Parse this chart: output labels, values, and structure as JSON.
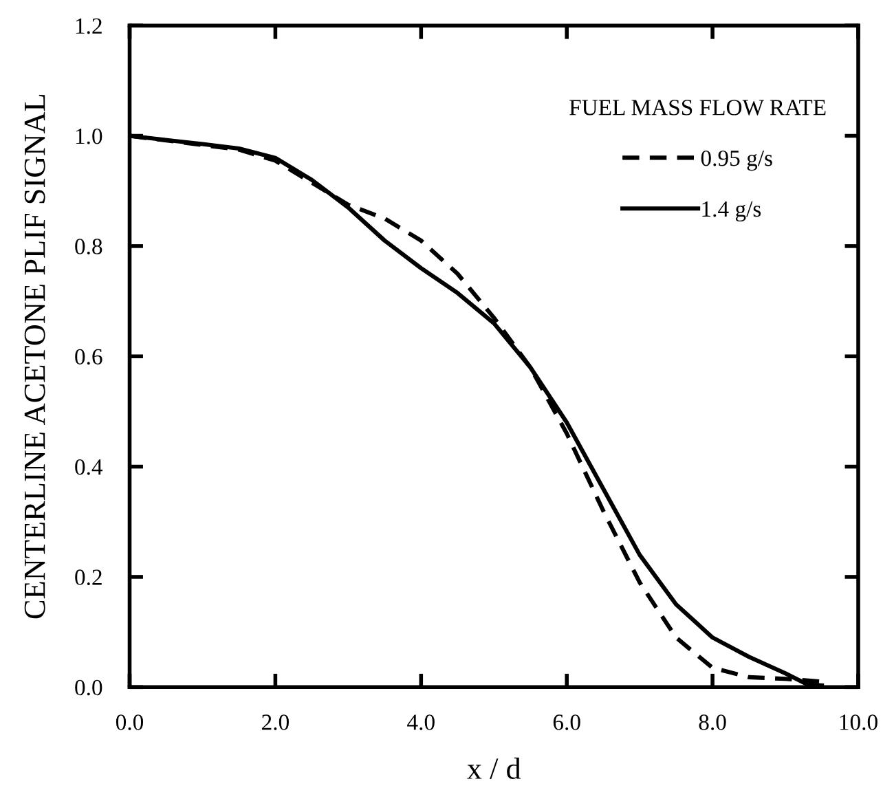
{
  "chart_data": {
    "type": "line",
    "xlabel": "x / d",
    "ylabel": "CENTERLINE ACETONE PLIF SIGNAL",
    "legend_title": "FUEL MASS FLOW RATE",
    "xlim": [
      0,
      10
    ],
    "ylim": [
      0,
      1.2
    ],
    "xticks": [
      {
        "value": 0,
        "label": "0.0"
      },
      {
        "value": 2,
        "label": "2.0"
      },
      {
        "value": 4,
        "label": "4.0"
      },
      {
        "value": 6,
        "label": "6.0"
      },
      {
        "value": 8,
        "label": "8.0"
      },
      {
        "value": 10,
        "label": "10.0"
      }
    ],
    "yticks": [
      {
        "value": 0,
        "label": "0.0"
      },
      {
        "value": 0.2,
        "label": "0.2"
      },
      {
        "value": 0.4,
        "label": "0.4"
      },
      {
        "value": 0.6,
        "label": "0.6"
      },
      {
        "value": 0.8,
        "label": "0.8"
      },
      {
        "value": 1.0,
        "label": "1.0"
      },
      {
        "value": 1.2,
        "label": "1.2"
      }
    ],
    "grid": false,
    "legend": "top right",
    "marker": "none",
    "series": [
      {
        "name": "0.95 g/s",
        "color": "#000000",
        "line_style": "dashed",
        "x": [
          0,
          1.5,
          2,
          2.5,
          3,
          3.5,
          4,
          4.5,
          5,
          5.5,
          6,
          6.5,
          7,
          7.5,
          8,
          8.5,
          9,
          9.5
        ],
        "values": [
          1.0,
          0.975,
          0.955,
          0.915,
          0.875,
          0.85,
          0.81,
          0.75,
          0.67,
          0.58,
          0.46,
          0.32,
          0.19,
          0.09,
          0.035,
          0.018,
          0.015,
          0.01
        ]
      },
      {
        "name": "1.4 g/s",
        "color": "#000000",
        "line_style": "solid",
        "x": [
          0,
          1,
          1.5,
          2,
          2.5,
          3,
          3.5,
          4,
          4.5,
          5,
          5.5,
          6,
          6.5,
          7,
          7.5,
          8,
          8.5,
          9,
          9.3,
          9.5
        ],
        "values": [
          1.0,
          0.985,
          0.977,
          0.96,
          0.92,
          0.87,
          0.81,
          0.76,
          0.715,
          0.66,
          0.58,
          0.48,
          0.36,
          0.24,
          0.15,
          0.09,
          0.055,
          0.025,
          0.005,
          0.003
        ]
      }
    ]
  }
}
